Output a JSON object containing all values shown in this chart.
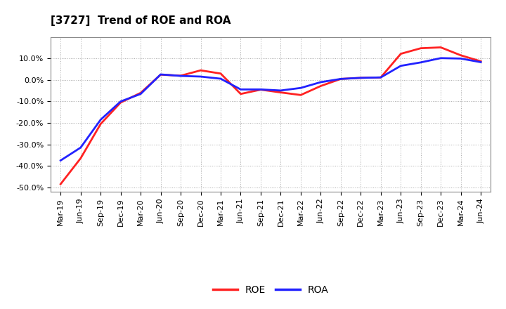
{
  "title": "[3727]  Trend of ROE and ROA",
  "background_color": "#ffffff",
  "plot_bg_color": "#ffffff",
  "grid_color": "#aaaaaa",
  "ylim": [
    -0.52,
    0.2
  ],
  "yticks": [
    -0.5,
    -0.4,
    -0.3,
    -0.2,
    -0.1,
    0.0,
    0.1
  ],
  "roe_color": "#ff2222",
  "roa_color": "#2222ff",
  "line_width": 2.0,
  "x_labels": [
    "Mar-19",
    "Jun-19",
    "Sep-19",
    "Dec-19",
    "Mar-20",
    "Jun-20",
    "Sep-20",
    "Dec-20",
    "Mar-21",
    "Jun-21",
    "Sep-21",
    "Dec-21",
    "Mar-22",
    "Jun-22",
    "Sep-22",
    "Dec-22",
    "Mar-23",
    "Jun-23",
    "Sep-23",
    "Dec-23",
    "Mar-24",
    "Jun-24"
  ],
  "roe": [
    -0.485,
    -0.365,
    -0.205,
    -0.105,
    -0.06,
    0.025,
    0.02,
    0.045,
    0.03,
    -0.065,
    -0.045,
    -0.058,
    -0.07,
    -0.028,
    0.005,
    0.01,
    0.012,
    0.122,
    0.148,
    0.152,
    0.115,
    0.087
  ],
  "roa": [
    -0.375,
    -0.315,
    -0.185,
    -0.1,
    -0.065,
    0.026,
    0.019,
    0.016,
    0.006,
    -0.044,
    -0.044,
    -0.049,
    -0.037,
    -0.01,
    0.005,
    0.01,
    0.012,
    0.066,
    0.082,
    0.102,
    0.1,
    0.083
  ]
}
